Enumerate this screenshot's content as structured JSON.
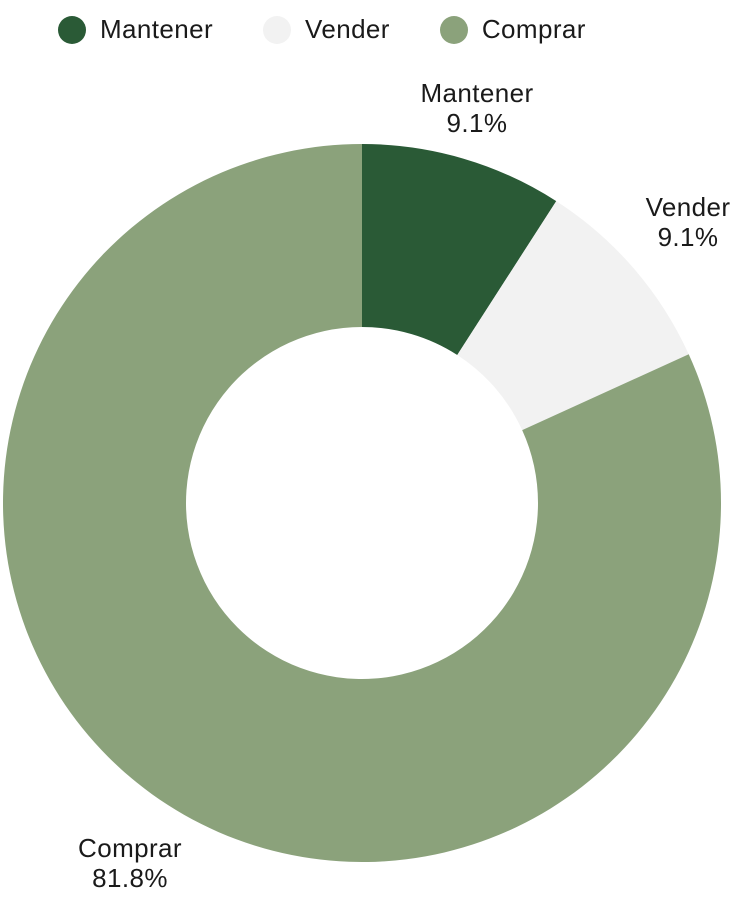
{
  "legend": {
    "items": [
      {
        "label": "Mantener",
        "color": "#2A5A36"
      },
      {
        "label": "Vender",
        "color": "#F2F2F2"
      },
      {
        "label": "Comprar",
        "color": "#8BA27B"
      }
    ]
  },
  "chart_data": {
    "type": "pie",
    "subtype": "donut",
    "title": "",
    "categories": [
      "Mantener",
      "Vender",
      "Comprar"
    ],
    "values": [
      9.1,
      9.1,
      81.8
    ],
    "unit": "%",
    "slices": [
      {
        "name": "Mantener",
        "value": 9.1,
        "pct_label": "9.1%",
        "color": "#2A5A36"
      },
      {
        "name": "Vender",
        "value": 9.1,
        "pct_label": "9.1%",
        "color": "#F2F2F2"
      },
      {
        "name": "Comprar",
        "value": 81.8,
        "pct_label": "81.8%",
        "color": "#8BA27B"
      }
    ],
    "start_angle": "12-oclock",
    "direction": "clockwise",
    "donut_hole_ratio": 0.49,
    "legend_position": "top",
    "label_position": "outside",
    "text_color": "#1A1A1A",
    "background_color": "#FFFFFF"
  }
}
